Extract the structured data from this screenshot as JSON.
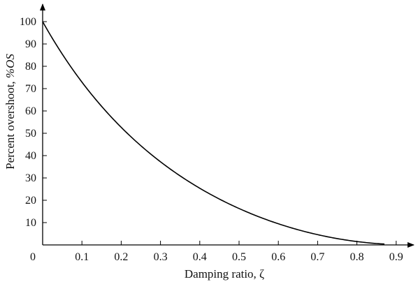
{
  "chart_data": {
    "type": "line",
    "title": "",
    "xlabel": "Damping ratio, ζ",
    "ylabel_text": "Percent overshoot, ",
    "ylabel_var": "%OS",
    "origin_label": "0",
    "xlim": [
      0,
      0.9
    ],
    "ylim": [
      0,
      100
    ],
    "x_ticks": [
      0.1,
      0.2,
      0.3,
      0.4,
      0.5,
      0.6,
      0.7,
      0.8,
      0.9
    ],
    "x_tick_labels": [
      "0.1",
      "0.2",
      "0.3",
      "0.4",
      "0.5",
      "0.6",
      "0.7",
      "0.8",
      "0.9"
    ],
    "y_ticks": [
      10,
      20,
      30,
      40,
      50,
      60,
      70,
      80,
      90,
      100
    ],
    "y_tick_labels": [
      "10",
      "20",
      "30",
      "40",
      "50",
      "60",
      "70",
      "80",
      "90",
      "100"
    ],
    "grid": false,
    "series": [
      {
        "x": [
          0,
          0.05,
          0.1,
          0.15,
          0.2,
          0.25,
          0.3,
          0.35,
          0.4,
          0.45,
          0.5,
          0.55,
          0.6,
          0.65,
          0.7,
          0.75,
          0.8,
          0.85,
          0.87
        ],
        "y": [
          100,
          85.4,
          72.9,
          62.1,
          52.7,
          44.4,
          37.2,
          30.9,
          25.4,
          20.5,
          16.3,
          12.6,
          9.5,
          6.8,
          4.6,
          2.8,
          1.5,
          0.6,
          0.4
        ]
      }
    ]
  }
}
